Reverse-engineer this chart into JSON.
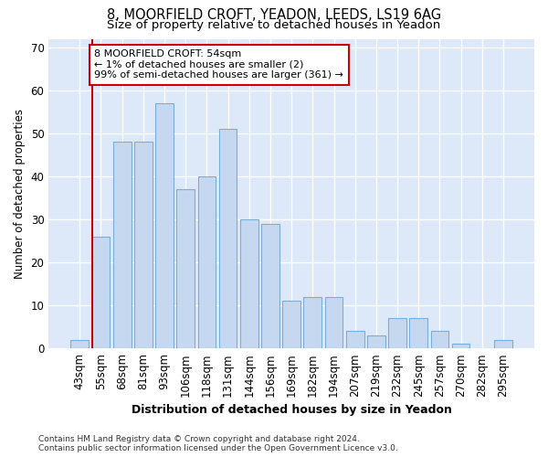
{
  "title1": "8, MOORFIELD CROFT, YEADON, LEEDS, LS19 6AG",
  "title2": "Size of property relative to detached houses in Yeadon",
  "xlabel": "Distribution of detached houses by size in Yeadon",
  "ylabel": "Number of detached properties",
  "categories": [
    "43sqm",
    "55sqm",
    "68sqm",
    "81sqm",
    "93sqm",
    "106sqm",
    "118sqm",
    "131sqm",
    "144sqm",
    "156sqm",
    "169sqm",
    "182sqm",
    "194sqm",
    "207sqm",
    "219sqm",
    "232sqm",
    "245sqm",
    "257sqm",
    "270sqm",
    "282sqm",
    "295sqm"
  ],
  "values": [
    2,
    26,
    48,
    48,
    57,
    37,
    40,
    51,
    30,
    29,
    11,
    12,
    12,
    4,
    3,
    7,
    7,
    4,
    1,
    0,
    2
  ],
  "bar_color": "#c5d8f0",
  "bar_edge_color": "#7aaed6",
  "annotation_text": "8 MOORFIELD CROFT: 54sqm\n← 1% of detached houses are smaller (2)\n99% of semi-detached houses are larger (361) →",
  "annotation_box_color": "#ffffff",
  "annotation_border_color": "#cc0000",
  "vline_color": "#cc0000",
  "ylim": [
    0,
    72
  ],
  "yticks": [
    0,
    10,
    20,
    30,
    40,
    50,
    60,
    70
  ],
  "background_color": "#dde8f8",
  "footer_text": "Contains HM Land Registry data © Crown copyright and database right 2024.\nContains public sector information licensed under the Open Government Licence v3.0.",
  "title1_fontsize": 10.5,
  "title2_fontsize": 9.5,
  "xlabel_fontsize": 9,
  "ylabel_fontsize": 8.5,
  "tick_fontsize": 8.5,
  "annot_fontsize": 8,
  "footer_fontsize": 6.5
}
